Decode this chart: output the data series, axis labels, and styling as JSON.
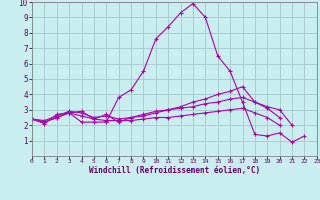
{
  "background_color": "#c8eef0",
  "grid_color": "#a8c8cc",
  "line_color": "#aa00aa",
  "marker": "+",
  "xlabel": "Windchill (Refroidissement éolien,°C)",
  "xlim": [
    0,
    23
  ],
  "ylim": [
    0,
    10
  ],
  "yticks": [
    1,
    2,
    3,
    4,
    5,
    6,
    7,
    8,
    9,
    10
  ],
  "xticks": [
    0,
    1,
    2,
    3,
    4,
    5,
    6,
    7,
    8,
    9,
    10,
    11,
    12,
    13,
    14,
    15,
    16,
    17,
    18,
    19,
    20,
    21,
    22,
    23
  ],
  "series": [
    {
      "x": [
        0,
        1,
        2,
        3,
        4,
        5,
        6,
        7,
        8,
        9,
        10,
        11,
        12,
        13,
        14,
        15,
        16,
        17,
        18,
        19,
        20,
        21,
        22
      ],
      "y": [
        2.4,
        2.1,
        2.7,
        2.8,
        2.2,
        2.2,
        2.2,
        3.8,
        4.3,
        5.5,
        7.6,
        8.4,
        9.3,
        9.9,
        9.0,
        6.5,
        5.5,
        3.5,
        1.4,
        1.3,
        1.5,
        0.9,
        1.3
      ]
    },
    {
      "x": [
        0,
        1,
        2,
        3,
        4,
        5,
        6,
        7,
        8,
        9,
        10,
        11,
        12,
        13,
        14,
        15,
        16,
        17,
        18,
        19,
        20,
        21
      ],
      "y": [
        2.4,
        2.2,
        2.5,
        2.8,
        2.9,
        2.4,
        2.7,
        2.2,
        2.5,
        2.6,
        2.8,
        3.0,
        3.2,
        3.5,
        3.7,
        4.0,
        4.2,
        4.5,
        3.5,
        3.2,
        3.0,
        2.0
      ]
    },
    {
      "x": [
        0,
        1,
        2,
        3,
        4,
        5,
        6,
        7,
        8,
        9,
        10,
        11,
        12,
        13,
        14,
        15,
        16,
        17,
        18,
        19,
        20
      ],
      "y": [
        2.4,
        2.3,
        2.6,
        2.9,
        2.8,
        2.5,
        2.6,
        2.4,
        2.5,
        2.7,
        2.9,
        3.0,
        3.1,
        3.2,
        3.4,
        3.5,
        3.7,
        3.8,
        3.5,
        3.1,
        2.5
      ]
    },
    {
      "x": [
        0,
        1,
        2,
        3,
        4,
        5,
        6,
        7,
        8,
        9,
        10,
        11,
        12,
        13,
        14,
        15,
        16,
        17,
        18,
        19,
        20
      ],
      "y": [
        2.4,
        2.2,
        2.5,
        2.8,
        2.6,
        2.4,
        2.3,
        2.3,
        2.3,
        2.4,
        2.5,
        2.5,
        2.6,
        2.7,
        2.8,
        2.9,
        3.0,
        3.1,
        2.8,
        2.5,
        2.0
      ]
    }
  ]
}
